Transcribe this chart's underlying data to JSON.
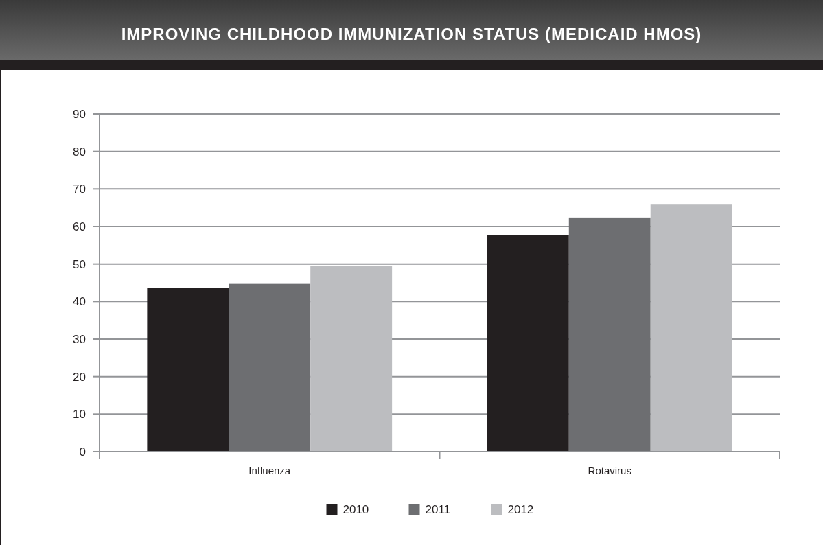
{
  "chart_data": {
    "type": "bar",
    "title": "IMPROVING CHILDHOOD IMMUNIZATION STATUS (MEDICAID HMOS)",
    "categories": [
      "Influenza",
      "Rotavirus"
    ],
    "series": [
      {
        "name": "2010",
        "color": "#231f20",
        "values": [
          43.6,
          57.7
        ]
      },
      {
        "name": "2011",
        "color": "#6d6e71",
        "values": [
          44.7,
          62.4
        ]
      },
      {
        "name": "2012",
        "color": "#bcbdc0",
        "values": [
          49.4,
          66.0
        ]
      }
    ],
    "ylim": [
      0,
      90
    ],
    "yticks": [
      0,
      10,
      20,
      30,
      40,
      50,
      60,
      70,
      80,
      90
    ],
    "grid": "y",
    "legend": "bottom"
  }
}
